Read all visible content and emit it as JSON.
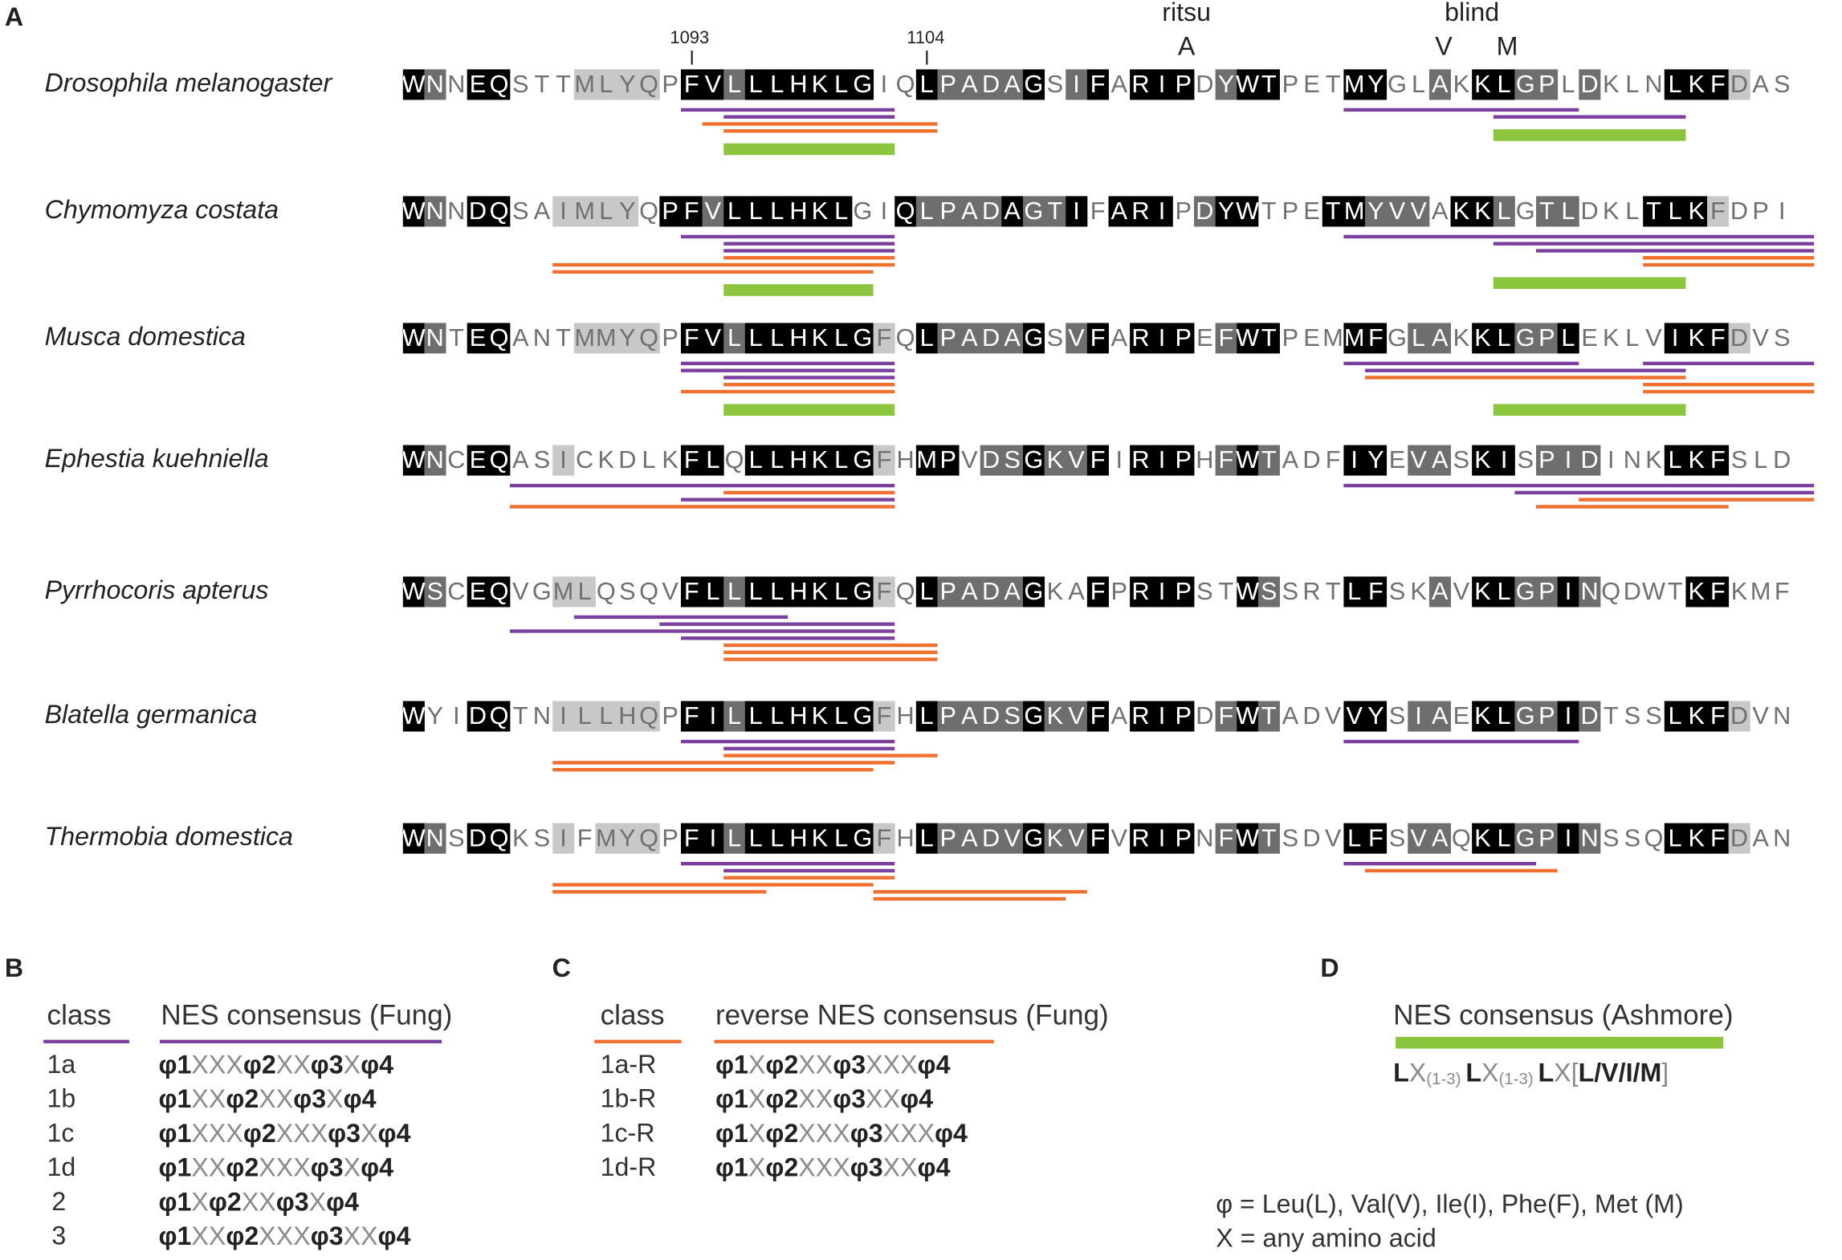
{
  "panel_a": {
    "label": "A",
    "position_markers": [
      "1093",
      "1104"
    ],
    "ritsu": "ritsu",
    "ritsu_residue": "A",
    "blind": "blind",
    "blind_residues": [
      "V",
      "M"
    ],
    "shade_colors": {
      "k": "#000000",
      "d": "#6e6e6e",
      "l": "#c8c8c8"
    },
    "line_colors": {
      "p": "#7b3f9e",
      "o": "#f07030",
      "g": "#8cc63f"
    },
    "rows": [
      {
        "species": "Drosophila melanogaster",
        "sequence": "WNNEQSTTMLYQPFVLLLHKLGIQLPADAGSIFARIPDYWTPETMYGLAKKLGPLDKLNLKFDAS",
        "shading": "kd.kk...llll.kkdkkkkkk..kddddk.dk.kkk.dkk...kk..d.kkdd.d...kkkl..",
        "lines": [
          [
            "p",
            13,
            23
          ],
          [
            "p",
            15,
            23
          ],
          [
            "o",
            14,
            25
          ],
          [
            "o",
            15,
            25
          ],
          [
            "g",
            15,
            23
          ],
          [
            "p",
            44,
            55
          ],
          [
            "p",
            51,
            60
          ],
          [
            "g",
            51,
            60
          ]
        ]
      },
      {
        "species": "Chymomyza costata",
        "sequence": "WNNDQSAIMLYQPFVLLLHKLGIQLPADAGTIFARIPDYWTPETMYVVAKKLGTLDKLTLKFDPI",
        "shading": "kd.kk..llll.kkdkkkkkk..kddddkddk.kkk.dkk...kkddd.kkd.dd...kkkl..",
        "lines": [
          [
            "p",
            13,
            23
          ],
          [
            "p",
            15,
            23
          ],
          [
            "p",
            15,
            23
          ],
          [
            "o",
            15,
            23
          ],
          [
            "o",
            7,
            23
          ],
          [
            "o",
            7,
            22
          ],
          [
            "g",
            15,
            22
          ],
          [
            "p",
            44,
            66
          ],
          [
            "p",
            51,
            66
          ],
          [
            "p",
            53,
            66
          ],
          [
            "o",
            58,
            66
          ],
          [
            "o",
            58,
            66
          ],
          [
            "g",
            51,
            60
          ]
        ]
      },
      {
        "species": "Musca domestica",
        "sequence": "WNTEQANTMMYQPFVLLLHKLGFQLPADAGSVFARIPEFWTPEMMFGLAKKLGPLEKLVIKFDVS",
        "shading": "kd.kk...llll.kkdkkkkkkl.kddddk.dk.kkk.dkk...kk.dd.kkddk....kkkl..",
        "lines": [
          [
            "p",
            13,
            23
          ],
          [
            "p",
            13,
            23
          ],
          [
            "p",
            15,
            23
          ],
          [
            "o",
            15,
            23
          ],
          [
            "o",
            13,
            23
          ],
          [
            "g",
            15,
            23
          ],
          [
            "p",
            44,
            55
          ],
          [
            "p",
            58,
            66
          ],
          [
            "p",
            45,
            60
          ],
          [
            "o",
            45,
            60
          ],
          [
            "o",
            58,
            66
          ],
          [
            "o",
            58,
            66
          ],
          [
            "g",
            51,
            60
          ]
        ]
      },
      {
        "species": "Ephestia kuehniella",
        "sequence": "WNCEQASICKDLKFLQLLHKLGFHMPVDSGKVFIRIPHFWTADFIYEVASKISPIDINKLKFSLD",
        "shading": "kd.kk..l.....kk.kkkkkkl.kk.ddkddk.kkk.dkd...kk.dd.kk.ddd...kkk...",
        "lines": [
          [
            "p",
            5,
            23
          ],
          [
            "o",
            15,
            23
          ],
          [
            "p",
            13,
            23
          ],
          [
            "o",
            5,
            23
          ],
          [
            "p",
            44,
            66
          ],
          [
            "p",
            52,
            66
          ],
          [
            "o",
            55,
            66
          ],
          [
            "o",
            53,
            62
          ]
        ]
      },
      {
        "species": "Pyrrhocoris apterus",
        "sequence": "WSCEQVGMLQSQVFLLLLHKLGFQLPADAGKAFPRIPSTWSSRTLFSKAVKLGPINQDWTKFKMF",
        "shading": "kd.kk..ll....kkdkkkkkkl.kddddk..k.kkk..kd...kk..d.kkddkd....kk...",
        "lines": [
          [
            "p",
            8,
            18
          ],
          [
            "p",
            12,
            23
          ],
          [
            "p",
            5,
            23
          ],
          [
            "p",
            13,
            23
          ],
          [
            "o",
            15,
            25
          ],
          [
            "o",
            15,
            25
          ],
          [
            "o",
            15,
            25
          ]
        ]
      },
      {
        "species": "Blatella germanica",
        "sequence": "WYIDQTNILLHQPFILLLHKLGFHLPADSGKVFARIPDFWTADVVYSIAEKLGPIDTSSLKFDVN",
        "shading": "k..kk..lllll.kkdkkkkkkl.kddddkddk.kkk.dkd...kk.dd.kkddkd...kkkl..",
        "lines": [
          [
            "p",
            13,
            23
          ],
          [
            "p",
            15,
            23
          ],
          [
            "o",
            15,
            25
          ],
          [
            "o",
            7,
            23
          ],
          [
            "o",
            7,
            22
          ],
          [
            "p",
            44,
            55
          ]
        ]
      },
      {
        "species": "Thermobia domestica",
        "sequence": "WNSDQKSIFMYQPFILLLHKLGFHLPADVGKVFVRIPNFWTSDVLFSVAQKLGPINSSQLKFDAN",
        "shading": "kd.kk..l.lll.kkdkkkkkkl.kddddkddk.kkk.dkd...kk.dd.kkddkd...kkkl..",
        "lines": [
          [
            "p",
            13,
            23
          ],
          [
            "p",
            15,
            23
          ],
          [
            "o",
            15,
            23
          ],
          [
            "o",
            7,
            22
          ],
          [
            "o",
            7,
            17
          ],
          [
            "o",
            22,
            32
          ],
          [
            "o",
            22,
            31
          ],
          [
            "p",
            44,
            53
          ],
          [
            "o",
            45,
            54
          ]
        ]
      }
    ]
  },
  "panel_b": {
    "label": "B",
    "class_header": "class",
    "consensus_header": "NES consensus (Fung)",
    "rows": [
      [
        "1a",
        "φ1XXXφ2XXφ3Xφ4"
      ],
      [
        "1b",
        "φ1XXφ2XXφ3Xφ4"
      ],
      [
        "1c",
        "φ1XXXφ2XXXφ3Xφ4"
      ],
      [
        "1d",
        "φ1XXφ2XXXφ3Xφ4"
      ],
      [
        "2",
        "φ1Xφ2XXφ3Xφ4"
      ],
      [
        "3",
        "φ1XXφ2XXXφ3XXφ4"
      ]
    ]
  },
  "panel_c": {
    "label": "C",
    "class_header": "class",
    "consensus_header": "reverse NES consensus (Fung)",
    "rows": [
      [
        "1a-R",
        "φ1Xφ2XXφ3XXXφ4"
      ],
      [
        "1b-R",
        "φ1Xφ2XXφ3XXφ4"
      ],
      [
        "1c-R",
        "φ1Xφ2XXXφ3XXXφ4"
      ],
      [
        "1d-R",
        "φ1Xφ2XXXφ3XXφ4"
      ]
    ]
  },
  "panel_d": {
    "label": "D",
    "consensus_header": "NES consensus (Ashmore)",
    "tokens": [
      "L",
      "X",
      "(1-3)",
      "L",
      "X",
      "(1-3)",
      "L",
      "X",
      "[",
      "L/V/I/M",
      "]"
    ],
    "legend": [
      "φ = Leu(L), Val(V), Ile(I), Phe(F), Met (M)",
      "X = any amino acid"
    ]
  }
}
